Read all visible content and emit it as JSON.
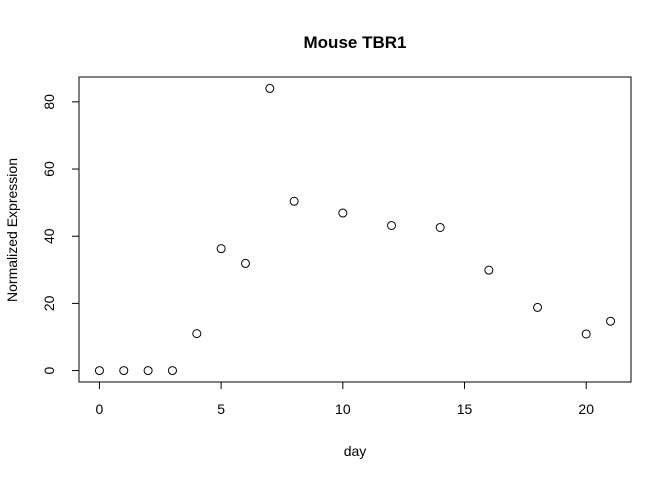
{
  "chart_data": {
    "type": "scatter",
    "title": "Mouse TBR1",
    "xlabel": "day",
    "ylabel": "Normalized Expression",
    "xlim": [
      -0.84,
      21.84
    ],
    "ylim": [
      -3.4,
      87.4
    ],
    "xticks": [
      0,
      5,
      10,
      15,
      20
    ],
    "yticks": [
      0,
      20,
      40,
      60,
      80
    ],
    "grid": false,
    "marker": "open-circle",
    "series": [
      {
        "x": [
          0,
          1,
          2,
          3,
          4,
          5,
          6,
          7,
          8,
          10,
          12,
          14,
          16,
          18,
          20,
          21
        ],
        "y": [
          0,
          0,
          0,
          0,
          11,
          36.3,
          31.9,
          84,
          50.4,
          46.9,
          43.2,
          42.6,
          29.9,
          18.8,
          10.9,
          14.7
        ]
      }
    ]
  }
}
